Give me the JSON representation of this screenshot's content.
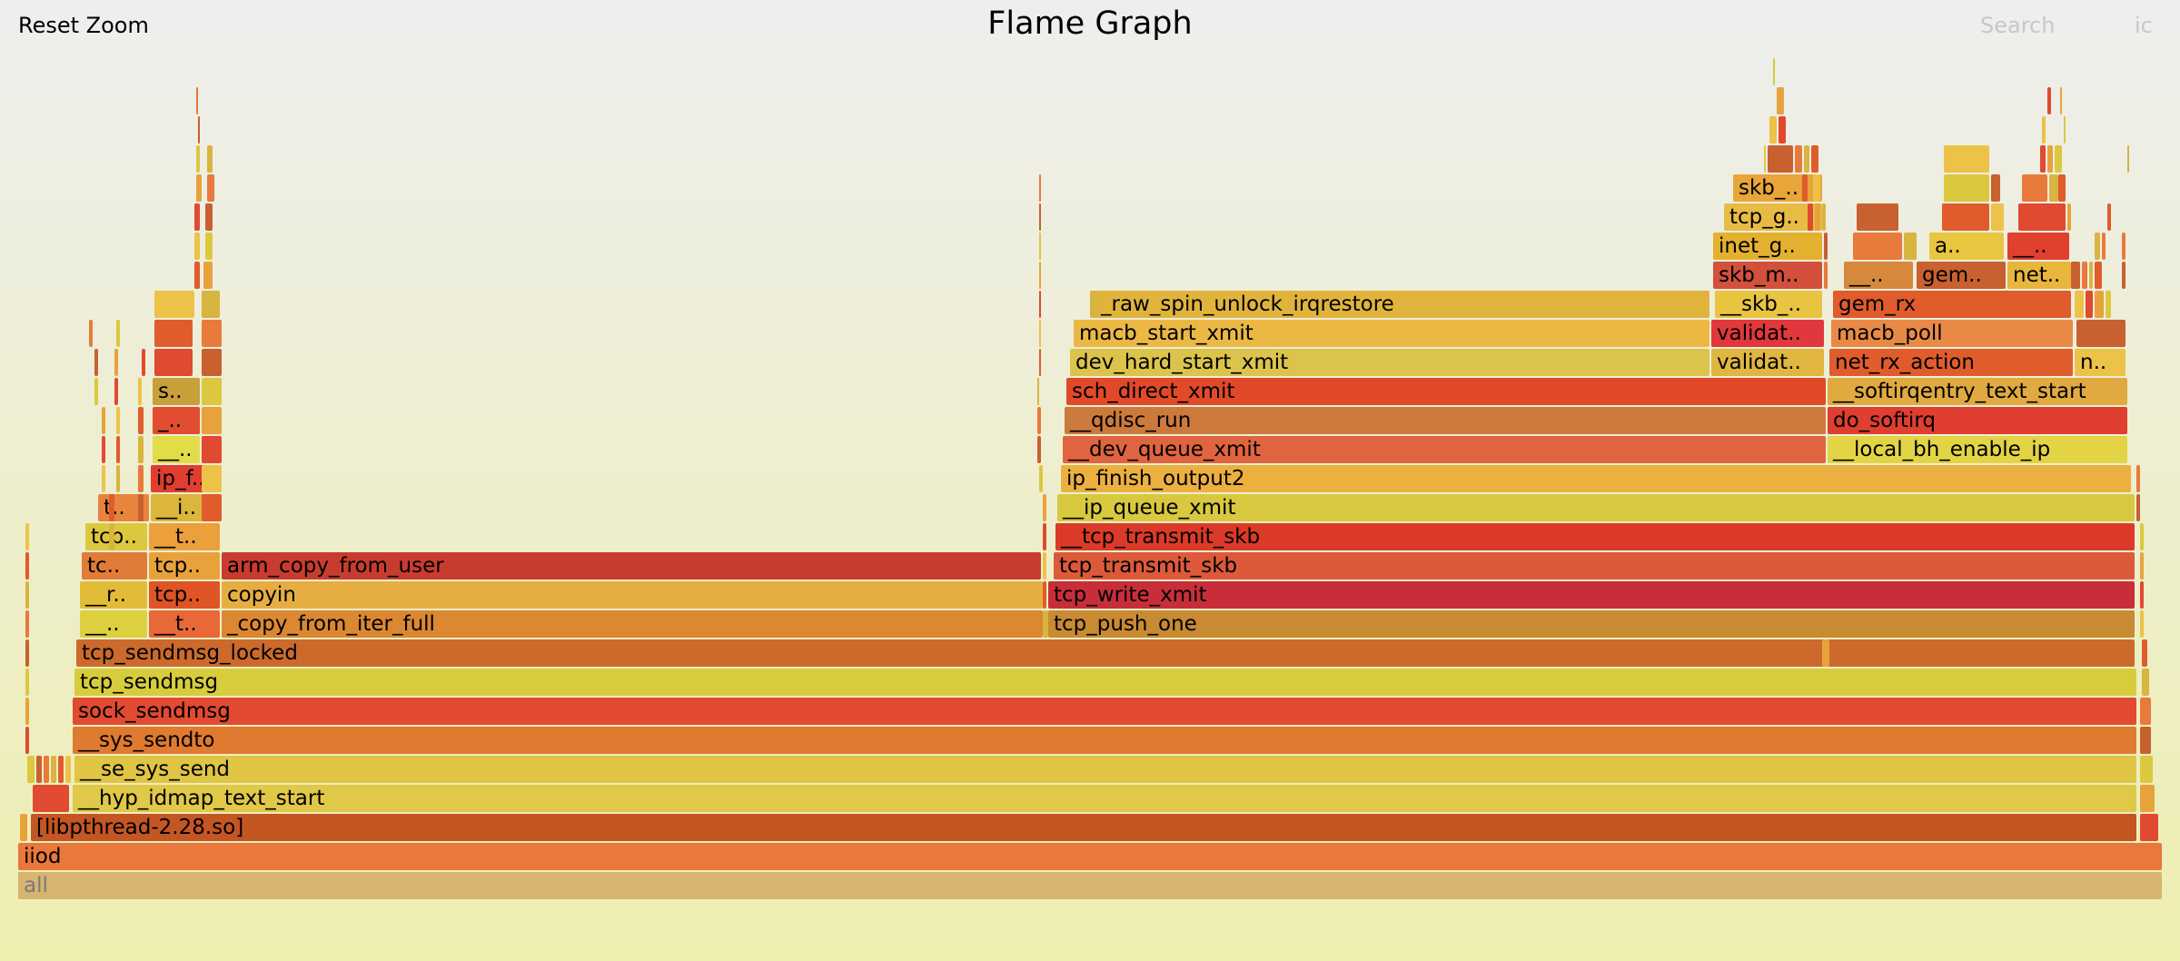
{
  "toolbar": {
    "reset_zoom": "Reset Zoom",
    "title": "Flame Graph",
    "search": "Search",
    "ic": "ic"
  },
  "frames": [
    {
      "text": "all",
      "fill": "#d8b470",
      "root": true
    },
    {
      "text": "iiod",
      "fill": "#e8783c"
    },
    {
      "text": "[libpthread-2.28.so]",
      "fill": "#c45624"
    },
    {
      "text": "__hyp_idmap_text_start",
      "fill": "#e0c848"
    },
    {
      "text": "__se_sys_send",
      "fill": "#e0c444"
    },
    {
      "text": "__sys_sendto",
      "fill": "#e07a30"
    },
    {
      "text": "sock_sendmsg",
      "fill": "#e24a32"
    },
    {
      "text": "tcp_sendmsg",
      "fill": "#d6cc3c"
    },
    {
      "text": "tcp_sendmsg_locked",
      "fill": "#cc6a2c"
    },
    {
      "text": "__..",
      "fill": "#dcd040"
    },
    {
      "text": "__t..",
      "fill": "#e86838"
    },
    {
      "text": "_copy_from_iter_full",
      "fill": "#dc8832"
    },
    {
      "text": "tcp_push_one",
      "fill": "#c88a32"
    },
    {
      "text": "__r..",
      "fill": "#e2bc38"
    },
    {
      "text": "tcp..",
      "fill": "#e05426"
    },
    {
      "text": "copyin",
      "fill": "#e6ae42"
    },
    {
      "text": "tcp_write_xmit",
      "fill": "#c82e3a"
    },
    {
      "text": "tc..",
      "fill": "#e07c38"
    },
    {
      "text": "tcp..",
      "fill": "#e8a23c"
    },
    {
      "text": "arm_copy_from_user",
      "fill": "#c83c30"
    },
    {
      "text": "tcp_transmit_skb",
      "fill": "#dc5a3a"
    },
    {
      "text": "tcp..",
      "fill": "#dcc83e"
    },
    {
      "text": "__t..",
      "fill": "#eca03c"
    },
    {
      "text": "__tcp_transmit_skb",
      "fill": "#dc3a28"
    },
    {
      "text": "t..",
      "fill": "#e8843c"
    },
    {
      "text": "__i..",
      "fill": "#dcb63c"
    },
    {
      "text": "__ip_queue_xmit",
      "fill": "#d8c840"
    },
    {
      "text": "ip_f..",
      "fill": "#e03e30"
    },
    {
      "text": "ip_finish_output2",
      "fill": "#ecb040"
    },
    {
      "text": "__..",
      "fill": "#e2dc48"
    },
    {
      "text": "__dev_queue_xmit",
      "fill": "#e06440"
    },
    {
      "text": "__local_bh_enable_ip",
      "fill": "#e2d444"
    },
    {
      "text": "_..",
      "fill": "#e24c30"
    },
    {
      "text": "__qdisc_run",
      "fill": "#cc7a3c"
    },
    {
      "text": "do_softirq",
      "fill": "#e03e30"
    },
    {
      "text": "s..",
      "fill": "#c8a03a"
    },
    {
      "text": "sch_direct_xmit",
      "fill": "#e04a28"
    },
    {
      "text": "__softirqentry_text_start",
      "fill": "#e0aa40"
    },
    {
      "text": "dev_hard_start_xmit",
      "fill": "#dcc44c"
    },
    {
      "text": "validat..",
      "fill": "#e0b640"
    },
    {
      "text": "net_rx_action",
      "fill": "#e05c2c"
    },
    {
      "text": "n..",
      "fill": "#ecc248"
    },
    {
      "text": "macb_start_xmit",
      "fill": "#ecb844"
    },
    {
      "text": "validat..",
      "fill": "#e0383c"
    },
    {
      "text": "macb_poll",
      "fill": "#e88a46"
    },
    {
      "text": "_raw_spin_unlock_irqrestore",
      "fill": "#e0b43c"
    },
    {
      "text": "__skb_..",
      "fill": "#e8c440"
    },
    {
      "text": "gem_rx",
      "fill": "#e05c2c"
    },
    {
      "text": "skb_m..",
      "fill": "#d2503c"
    },
    {
      "text": "__..",
      "fill": "#d6883c"
    },
    {
      "text": "gem..",
      "fill": "#c86030"
    },
    {
      "text": "net..",
      "fill": "#e8b63c"
    },
    {
      "text": "inet_g..",
      "fill": "#e4b030"
    },
    {
      "text": "a..",
      "fill": "#e8c640"
    },
    {
      "text": "__..",
      "fill": "#e0402e"
    },
    {
      "text": "tcp_g..",
      "fill": "#e8bc44"
    },
    {
      "text": "skb_..",
      "fill": "#e8a63a"
    }
  ]
}
